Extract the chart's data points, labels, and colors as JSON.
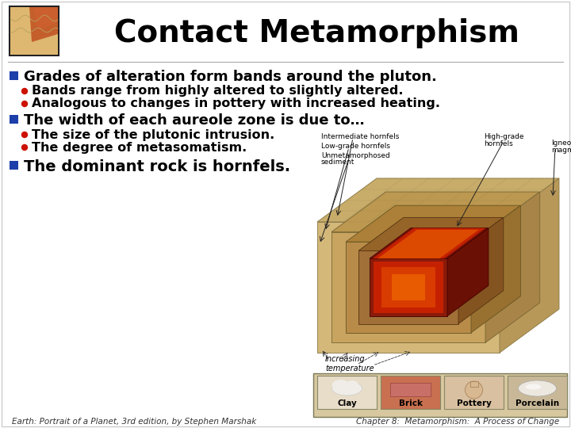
{
  "title": "Contact Metamorphism",
  "title_fontsize": 28,
  "title_color": "#000000",
  "bg_color": "#f0f0f0",
  "bullet1_text": "Grades of alteration form bands around the pluton.",
  "bullet1_color": "#1c3faa",
  "sub1a": "Bands range from highly altered to slightly altered.",
  "sub1b": "Analogous to changes in pottery with increased heating.",
  "bullet2_text": "The width of each aureole zone is due to…",
  "bullet2_color": "#1c3faa",
  "sub2a": "The size of the plutonic intrusion.",
  "sub2b": "The degree of metasomatism.",
  "bullet3_text": "The dominant rock is hornfels.",
  "bullet3_color": "#1c3faa",
  "sub_bullet_color": "#cc1100",
  "main_bullet_fontsize": 13,
  "sub_bullet_fontsize": 11.5,
  "footer_left": "Earth: Portrait of a Planet, 3rd edition, by Stephen Marshak",
  "footer_right": "Chapter 8:  Metamorphism:  A Process of Change",
  "footer_fontsize": 7.5
}
